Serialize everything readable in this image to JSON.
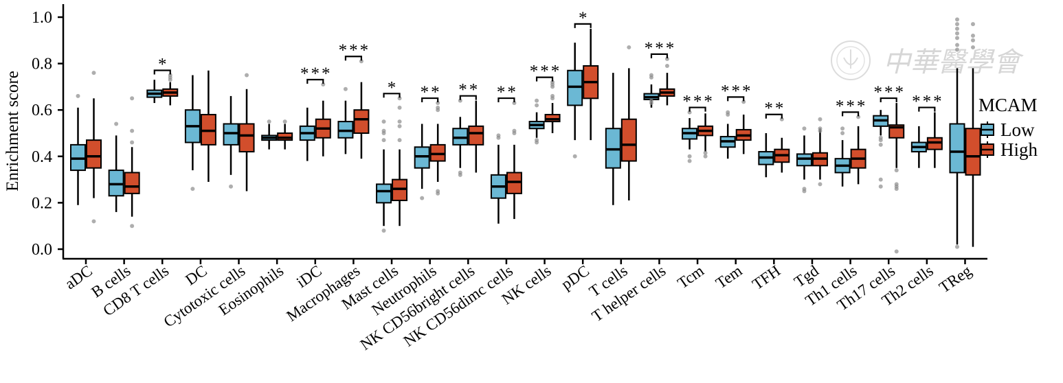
{
  "chart_data": {
    "type": "box",
    "title": "",
    "xlabel": "",
    "ylabel": "Enrichment score",
    "ylim": [
      0.0,
      1.0
    ],
    "yticks": [
      "0.0",
      "0.2",
      "0.4",
      "0.6",
      "0.8",
      "1.0"
    ],
    "grid": false,
    "legend": {
      "title": "MCAM",
      "position": "right",
      "entries": [
        "Low",
        "High"
      ]
    },
    "colors": {
      "Low": "#6bb8d4",
      "High": "#d24e2c",
      "outlier": "#8c8c8c",
      "axis": "#000000"
    },
    "watermark": "中華醫學會",
    "categories": [
      "aDC",
      "B cells",
      "CD8 T cells",
      "DC",
      "Cytotoxic cells",
      "Eosinophils",
      "iDC",
      "Macrophages",
      "Mast cells",
      "Neutrophils",
      "NK CD56bright cells",
      "NK CD56dimc cells",
      "NK cells",
      "pDC",
      "T cells",
      "T helper cells",
      "Tcm",
      "Tem",
      "TFH",
      "Tgd",
      "Th1 cells",
      "Th17 cells",
      "Th2 cells",
      "TReg"
    ],
    "significance": [
      "",
      "",
      "*",
      "",
      "",
      "",
      "***",
      "***",
      "*",
      "**",
      "**",
      "**",
      "***",
      "*",
      "",
      "***",
      "***",
      "***",
      "**",
      "",
      "***",
      "***",
      "***",
      ""
    ],
    "series": [
      {
        "name": "Low",
        "boxes": [
          {
            "min": 0.19,
            "q1": 0.34,
            "median": 0.39,
            "q3": 0.45,
            "max": 0.61,
            "outliers": [
              0.66
            ]
          },
          {
            "min": 0.16,
            "q1": 0.23,
            "median": 0.28,
            "q3": 0.34,
            "max": 0.49,
            "outliers": [
              0.54
            ]
          },
          {
            "min": 0.63,
            "q1": 0.655,
            "median": 0.67,
            "q3": 0.685,
            "max": 0.73,
            "outliers": []
          },
          {
            "min": 0.34,
            "q1": 0.46,
            "median": 0.53,
            "q3": 0.6,
            "max": 0.75,
            "outliers": [
              0.26
            ]
          },
          {
            "min": 0.32,
            "q1": 0.45,
            "median": 0.5,
            "q3": 0.54,
            "max": 0.66,
            "outliers": [
              0.27
            ]
          },
          {
            "min": 0.43,
            "q1": 0.47,
            "median": 0.48,
            "q3": 0.49,
            "max": 0.54,
            "outliers": [
              0.55
            ]
          },
          {
            "min": 0.38,
            "q1": 0.47,
            "median": 0.5,
            "q3": 0.53,
            "max": 0.61,
            "outliers": []
          },
          {
            "min": 0.41,
            "q1": 0.48,
            "median": 0.51,
            "q3": 0.55,
            "max": 0.64,
            "outliers": [
              0.69
            ]
          },
          {
            "min": 0.1,
            "q1": 0.2,
            "median": 0.25,
            "q3": 0.28,
            "max": 0.43,
            "outliers": [
              0.55,
              0.51,
              0.5,
              0.47,
              0.08
            ]
          },
          {
            "min": 0.26,
            "q1": 0.35,
            "median": 0.4,
            "q3": 0.44,
            "max": 0.54,
            "outliers": [
              0.22
            ]
          },
          {
            "min": 0.35,
            "q1": 0.45,
            "median": 0.48,
            "q3": 0.52,
            "max": 0.57,
            "outliers": [
              0.64,
              0.33,
              0.32
            ]
          },
          {
            "min": 0.11,
            "q1": 0.22,
            "median": 0.27,
            "q3": 0.32,
            "max": 0.45,
            "outliers": [
              0.49,
              0.48
            ]
          },
          {
            "min": 0.48,
            "q1": 0.52,
            "median": 0.535,
            "q3": 0.55,
            "max": 0.59,
            "outliers": [
              0.64,
              0.62,
              0.47,
              0.46
            ]
          },
          {
            "min": 0.47,
            "q1": 0.62,
            "median": 0.7,
            "q3": 0.77,
            "max": 0.89,
            "outliers": [
              0.4
            ]
          },
          {
            "min": 0.19,
            "q1": 0.35,
            "median": 0.43,
            "q3": 0.52,
            "max": 0.76,
            "outliers": []
          },
          {
            "min": 0.61,
            "q1": 0.645,
            "median": 0.655,
            "q3": 0.67,
            "max": 0.71,
            "outliers": [
              0.75,
              0.74,
              0.64,
              0.63
            ]
          },
          {
            "min": 0.43,
            "q1": 0.475,
            "median": 0.5,
            "q3": 0.52,
            "max": 0.565,
            "outliers": [
              0.59,
              0.4,
              0.38
            ]
          },
          {
            "min": 0.39,
            "q1": 0.44,
            "median": 0.465,
            "q3": 0.485,
            "max": 0.54,
            "outliers": [
              0.59,
              0.58
            ]
          },
          {
            "min": 0.31,
            "q1": 0.365,
            "median": 0.395,
            "q3": 0.42,
            "max": 0.5,
            "outliers": []
          },
          {
            "min": 0.3,
            "q1": 0.36,
            "median": 0.39,
            "q3": 0.41,
            "max": 0.49,
            "outliers": [
              0.52,
              0.26,
              0.25
            ]
          },
          {
            "min": 0.27,
            "q1": 0.33,
            "median": 0.36,
            "q3": 0.39,
            "max": 0.47,
            "outliers": [
              0.52,
              0.5
            ]
          },
          {
            "min": 0.49,
            "q1": 0.53,
            "median": 0.555,
            "q3": 0.575,
            "max": 0.6,
            "outliers": [
              0.48,
              0.47,
              0.45,
              0.3,
              0.27
            ]
          },
          {
            "min": 0.35,
            "q1": 0.42,
            "median": 0.44,
            "q3": 0.46,
            "max": 0.53,
            "outliers": []
          },
          {
            "min": 0.02,
            "q1": 0.33,
            "median": 0.42,
            "q3": 0.54,
            "max": 0.78,
            "outliers": [
              0.99,
              0.97,
              0.95,
              0.93,
              0.91,
              0.88,
              0.86,
              0.01
            ]
          }
        ]
      },
      {
        "name": "High",
        "boxes": [
          {
            "min": 0.22,
            "q1": 0.35,
            "median": 0.4,
            "q3": 0.47,
            "max": 0.65,
            "outliers": [
              0.76,
              0.12
            ]
          },
          {
            "min": 0.14,
            "q1": 0.24,
            "median": 0.27,
            "q3": 0.33,
            "max": 0.44,
            "outliers": [
              0.65,
              0.51,
              0.46,
              0.1
            ]
          },
          {
            "min": 0.62,
            "q1": 0.66,
            "median": 0.675,
            "q3": 0.69,
            "max": 0.72,
            "outliers": [
              0.75,
              0.74,
              0.73
            ]
          },
          {
            "min": 0.29,
            "q1": 0.45,
            "median": 0.51,
            "q3": 0.58,
            "max": 0.77,
            "outliers": []
          },
          {
            "min": 0.25,
            "q1": 0.42,
            "median": 0.49,
            "q3": 0.54,
            "max": 0.69,
            "outliers": [
              0.75
            ]
          },
          {
            "min": 0.43,
            "q1": 0.47,
            "median": 0.48,
            "q3": 0.5,
            "max": 0.54,
            "outliers": [
              0.55
            ]
          },
          {
            "min": 0.4,
            "q1": 0.48,
            "median": 0.52,
            "q3": 0.56,
            "max": 0.64,
            "outliers": [
              0.71
            ]
          },
          {
            "min": 0.39,
            "q1": 0.5,
            "median": 0.56,
            "q3": 0.6,
            "max": 0.72,
            "outliers": [
              0.81
            ]
          },
          {
            "min": 0.1,
            "q1": 0.21,
            "median": 0.26,
            "q3": 0.3,
            "max": 0.43,
            "outliers": [
              0.65,
              0.61,
              0.55,
              0.53,
              0.47
            ]
          },
          {
            "min": 0.29,
            "q1": 0.38,
            "median": 0.41,
            "q3": 0.45,
            "max": 0.54,
            "outliers": [
              0.63,
              0.61,
              0.6,
              0.25,
              0.24
            ]
          },
          {
            "min": 0.33,
            "q1": 0.45,
            "median": 0.5,
            "q3": 0.53,
            "max": 0.64,
            "outliers": []
          },
          {
            "min": 0.13,
            "q1": 0.24,
            "median": 0.29,
            "q3": 0.33,
            "max": 0.45,
            "outliers": [
              0.63,
              0.51,
              0.5
            ]
          },
          {
            "min": 0.5,
            "q1": 0.55,
            "median": 0.56,
            "q3": 0.58,
            "max": 0.63,
            "outliers": [
              0.72,
              0.71,
              0.7,
              0.66,
              0.65
            ]
          },
          {
            "min": 0.47,
            "q1": 0.65,
            "median": 0.72,
            "q3": 0.79,
            "max": 0.95,
            "outliers": []
          },
          {
            "min": 0.21,
            "q1": 0.38,
            "median": 0.45,
            "q3": 0.56,
            "max": 0.78,
            "outliers": [
              0.87
            ]
          },
          {
            "min": 0.62,
            "q1": 0.66,
            "median": 0.675,
            "q3": 0.69,
            "max": 0.76,
            "outliers": [
              0.82,
              0.79
            ]
          },
          {
            "min": 0.42,
            "q1": 0.49,
            "median": 0.51,
            "q3": 0.53,
            "max": 0.585,
            "outliers": [
              0.415,
              0.4
            ]
          },
          {
            "min": 0.41,
            "q1": 0.47,
            "median": 0.49,
            "q3": 0.515,
            "max": 0.58,
            "outliers": [
              0.635
            ]
          },
          {
            "min": 0.33,
            "q1": 0.375,
            "median": 0.405,
            "q3": 0.43,
            "max": 0.48,
            "outliers": [
              0.56
            ]
          },
          {
            "min": 0.3,
            "q1": 0.36,
            "median": 0.39,
            "q3": 0.415,
            "max": 0.52,
            "outliers": [
              0.56,
              0.52,
              0.51,
              0.28
            ]
          },
          {
            "min": 0.28,
            "q1": 0.35,
            "median": 0.39,
            "q3": 0.43,
            "max": 0.53,
            "outliers": [
              0.57
            ]
          },
          {
            "min": 0.35,
            "q1": 0.48,
            "median": 0.525,
            "q3": 0.535,
            "max": 0.63,
            "outliers": [
              0.34,
              0.28,
              0.27,
              0.26,
              -0.01
            ]
          },
          {
            "min": 0.35,
            "q1": 0.43,
            "median": 0.46,
            "q3": 0.48,
            "max": 0.59,
            "outliers": []
          },
          {
            "min": 0.01,
            "q1": 0.32,
            "median": 0.4,
            "q3": 0.52,
            "max": 0.78,
            "outliers": [
              0.97,
              0.92,
              0.9,
              0.87
            ]
          }
        ]
      }
    ]
  }
}
